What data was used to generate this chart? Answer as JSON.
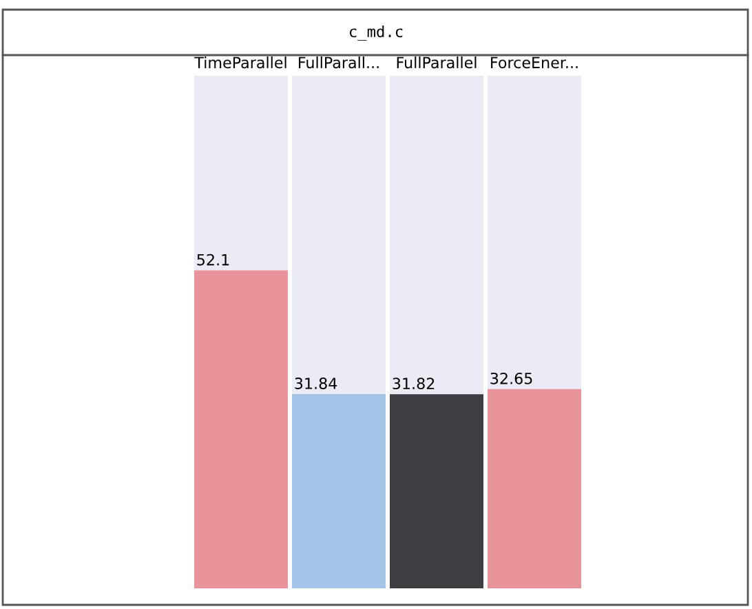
{
  "chart_data": {
    "type": "bar",
    "title": "c_md.c",
    "categories": [
      "TimeParallel",
      "FullParall...",
      "FullParallel",
      "ForceEner..."
    ],
    "values": [
      52.1,
      31.84,
      31.82,
      32.65
    ],
    "colors": [
      "#e8939a",
      "#a4c4e8",
      "#3e3e42",
      "#e8939a"
    ],
    "ylim": [
      0,
      84
    ],
    "data_labels": true,
    "tick_labels": false
  }
}
